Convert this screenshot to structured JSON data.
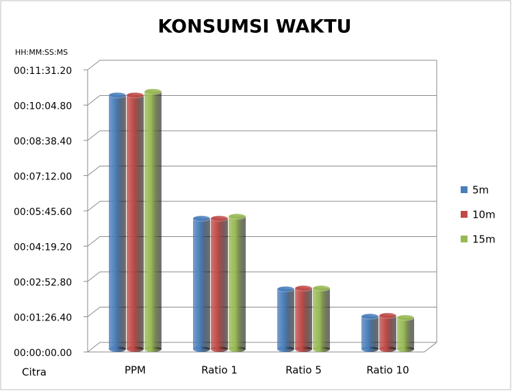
{
  "chart_data": {
    "type": "bar3d",
    "title": "KONSUMSI WAKTU",
    "y_label": "HH:MM:SS:MS",
    "x_label": "Citra",
    "categories": [
      "PPM",
      "Ratio 1",
      "Ratio 5",
      "Ratio 10"
    ],
    "series": [
      {
        "name": "5m",
        "color": "#4a7ebb",
        "values": [
          639,
          337,
          164,
          97
        ]
      },
      {
        "name": "10m",
        "color": "#be4b48",
        "values": [
          639,
          337,
          166,
          99
        ]
      },
      {
        "name": "15m",
        "color": "#98b954",
        "values": [
          648,
          342,
          166,
          94
        ]
      }
    ],
    "ylim": [
      0,
      691.2
    ],
    "yticks": [
      {
        "value": 0,
        "label": "00:00:00.00"
      },
      {
        "value": 86.4,
        "label": "00:01:26.40"
      },
      {
        "value": 172.8,
        "label": "00:02:52.80"
      },
      {
        "value": 259.2,
        "label": "00:04:19.20"
      },
      {
        "value": 345.6,
        "label": "00:05:45.60"
      },
      {
        "value": 432,
        "label": "00:07:12.00"
      },
      {
        "value": 518.4,
        "label": "00:08:38.40"
      },
      {
        "value": 604.8,
        "label": "00:10:04.80"
      },
      {
        "value": 691.2,
        "label": "00:11:31.20"
      }
    ],
    "grid": true,
    "legend": "right"
  }
}
